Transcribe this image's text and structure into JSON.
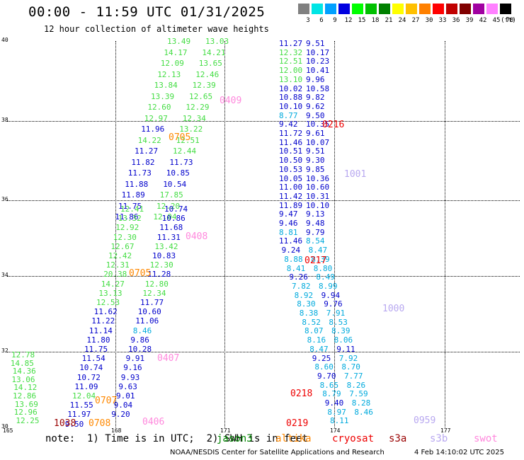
{
  "header": {
    "title": "00:00 - 11:59 UTC 01/31/2025",
    "subtitle": "12 hour collection of altimeter wave heights"
  },
  "legend": {
    "unit": "(ft)",
    "bins": [
      {
        "label": "3",
        "color": "#808080"
      },
      {
        "label": "6",
        "color": "#00e5e5"
      },
      {
        "label": "9",
        "color": "#00a0ff"
      },
      {
        "label": "12",
        "color": "#0000e0"
      },
      {
        "label": "15",
        "color": "#00ff00"
      },
      {
        "label": "18",
        "color": "#00c000"
      },
      {
        "label": "21",
        "color": "#008000"
      },
      {
        "label": "24",
        "color": "#ffff00"
      },
      {
        "label": "27",
        "color": "#ffc000"
      },
      {
        "label": "30",
        "color": "#ff8000"
      },
      {
        "label": "33",
        "color": "#ff0000"
      },
      {
        "label": "36",
        "color": "#c00000"
      },
      {
        "label": "39",
        "color": "#800000"
      },
      {
        "label": "42",
        "color": "#a000a0"
      },
      {
        "label": "45",
        "color": "#ff80ff"
      },
      {
        "label": "70",
        "color": "#000000"
      }
    ]
  },
  "axes": {
    "lat_labels": [
      "40",
      "38",
      "36",
      "34",
      "32",
      "30"
    ],
    "lon_labels": [
      "165",
      "168",
      "171",
      "174",
      "177"
    ]
  },
  "colors": {
    "green": "#44dd44",
    "blue": "#0000cc",
    "cyan": "#00aadd",
    "orange": "#ff8800",
    "red": "#ee0000",
    "pink": "#ff88dd",
    "lavender": "#b8a8f0",
    "darkred": "#990000"
  },
  "tracks": {
    "t1": [
      "13.49",
      "13.03",
      "14.17",
      "14.21",
      "12.09",
      "13.65",
      "12.13",
      "12.46",
      "13.84",
      "12.39",
      "13.39",
      "12.65",
      "12.60",
      "12.29",
      "12.97",
      "12.34",
      "11.96",
      "13.22",
      "14.22",
      "12.51",
      "11.27",
      "12.44",
      "11.82",
      "11.73",
      "11.73",
      "10.85",
      "11.88",
      "10.54",
      "11.89",
      "17.85",
      "11.75",
      "12.20",
      "11.86",
      "12.04"
    ],
    "t2": [
      "12.41",
      "10.74",
      "13.32",
      "10.86",
      "12.92",
      "11.68",
      "12.30",
      "11.31",
      "12.67",
      "13.42",
      "12.42",
      "10.83",
      "12.31",
      "12.30",
      "20.38",
      "11.28",
      "14.27",
      "12.80",
      "13.13",
      "12.34",
      "12.53",
      "11.77",
      "11.62",
      "10.60",
      "11.22",
      "11.06",
      "11.14",
      "8.46",
      "11.80",
      "9.86",
      "11.75",
      "10.28",
      "11.54",
      "9.91",
      "10.74",
      "9.16",
      "10.72",
      "9.93",
      "11.09",
      "9.63",
      "12.04",
      "9.01",
      "11.55",
      "9.04",
      "11.97",
      "9.20",
      "9.50"
    ],
    "t3": [
      "12.78",
      "14.85",
      "14.36",
      "13.06",
      "14.12",
      "12.86",
      "13.69",
      "12.96",
      "12.25"
    ],
    "t4": [
      "11.27",
      "9.51",
      "12.32",
      "10.17",
      "12.51",
      "10.23",
      "12.00",
      "10.41",
      "13.10",
      "9.96",
      "10.02",
      "10.58",
      "10.88",
      "9.82",
      "10.10",
      "9.62",
      "8.77",
      "9.50",
      "9.42",
      "10.35",
      "11.72",
      "9.61",
      "11.46",
      "10.07",
      "10.51",
      "9.51",
      "10.50",
      "9.30",
      "10.53",
      "9.85",
      "10.05",
      "10.36",
      "11.00",
      "10.60",
      "11.42",
      "10.31",
      "11.89",
      "10.10",
      "9.47",
      "9.13",
      "9.46",
      "9.48",
      "8.81",
      "9.79",
      "11.46",
      "8.54",
      "9.24",
      "8.47",
      "8.88",
      "8.39",
      "8.41",
      "8.80",
      "9.26",
      "8.49",
      "7.82",
      "8.99",
      "8.92",
      "9.94",
      "8.30",
      "9.76",
      "8.38",
      "7.91",
      "8.52",
      "8.53",
      "8.07",
      "8.39",
      "8.16",
      "8.06",
      "8.47",
      "9.11",
      "9.25",
      "7.92",
      "8.60",
      "8.70",
      "9.70",
      "7.77",
      "8.65",
      "8.26",
      "8.79",
      "7.59",
      "9.40",
      "8.28",
      "8.97",
      "8.46",
      "8.11"
    ],
    "passes": [
      "0409",
      "0705",
      "0216",
      "1001",
      "0408",
      "0217",
      "0705",
      "1000",
      "0407",
      "0218",
      "0707",
      "0219",
      "0959",
      "0406",
      "0708",
      "1038"
    ]
  },
  "footer": {
    "note": "note:  1) Time is in UTC;  2) SWH is in feet",
    "satellites": [
      {
        "label": "jason3",
        "color": "#008800"
      },
      {
        "label": "altika",
        "color": "#ff8800"
      },
      {
        "label": "cryosat",
        "color": "#ee0000"
      },
      {
        "label": "s3a",
        "color": "#990000"
      },
      {
        "label": "s3b",
        "color": "#b8a8f0"
      },
      {
        "label": "swot",
        "color": "#ff88dd"
      }
    ],
    "credit": "NOAA/NESDIS Center for Satellite Applications and Research",
    "timestamp": "4 Feb 14:10:02 UTC 2025"
  }
}
